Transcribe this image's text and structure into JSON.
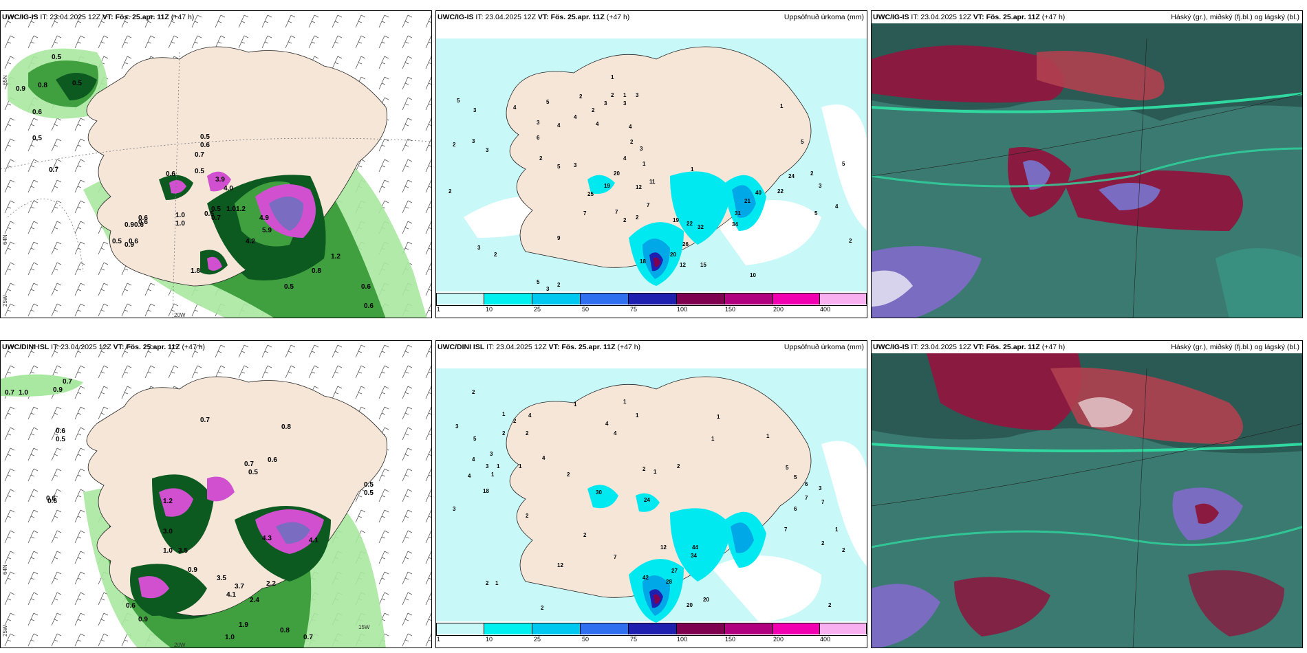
{
  "panels": {
    "top_left": {
      "model": "UWC/IG-IS",
      "it": "IT: 23.04.2025 12Z",
      "vt_label": "VT:",
      "vt": "Fös. 25.apr. 11Z",
      "lead": "(+47 h)",
      "right": ""
    },
    "top_mid": {
      "model": "UWC/IG-IS",
      "it": "IT: 23.04.2025 12Z",
      "vt_label": "VT:",
      "vt": "Fös. 25.apr. 11Z",
      "lead": "(+47 h)",
      "right": "Uppsöfnuð úrkoma (mm)"
    },
    "top_right": {
      "model": "UWC/IG-IS",
      "it": "IT: 23.04.2025 12Z",
      "vt_label": "VT:",
      "vt": "Fös. 25.apr. 11Z",
      "lead": "(+47 h)",
      "right": "Háský (gr.), miðský (fj.bl.) og lágský (bl.)"
    },
    "bottom_left": {
      "model": "UWC/DINI ISL",
      "it": "IT: 23.04.2025 12Z",
      "vt_label": "VT:",
      "vt": "Fös. 25.apr. 11Z",
      "lead": "(+47 h)",
      "right": ""
    },
    "bottom_mid": {
      "model": "UWC/DINI ISL",
      "it": "IT: 23.04.2025 12Z",
      "vt_label": "VT:",
      "vt": "Fös. 25.apr. 11Z",
      "lead": "(+47 h)",
      "right": "Uppsöfnuð úrkoma (mm)"
    },
    "bottom_right": {
      "model": "UWC/IG-IS",
      "it": "IT: 23.04.2025 12Z",
      "vt_label": "VT:",
      "vt": "Fös. 25.apr. 11Z",
      "lead": "(+47 h)",
      "right": "Háský (gr.), miðský (fj.bl.) og lágský (bl.)"
    }
  },
  "axis_labels": {
    "lat_65": "65N",
    "lat_64": "64N",
    "lon_25": "25W",
    "lon_20": "20W",
    "lon_15": "15W"
  },
  "colorbar": {
    "ticks": [
      "1",
      "10",
      "25",
      "50",
      "75",
      "100",
      "150",
      "200",
      "400"
    ],
    "colors": [
      "#c8f8f8",
      "#00f0f0",
      "#00c8f0",
      "#3070f0",
      "#2020b0",
      "#800050",
      "#b00080",
      "#f000b0",
      "#f8b0f0"
    ]
  },
  "colors": {
    "land": "#f5e6d8",
    "precip_light": "#c8f8f8",
    "precip_mid": "#00e8f0",
    "precip_dark": "#00a8e8",
    "green_light": "#a8e8a0",
    "green_mid": "#40a040",
    "green_dark": "#0c5a20",
    "magenta": "#d050d0",
    "cloud_teal": "#3a7a70",
    "cloud_dark": "#2b5a55",
    "cloud_maroon": "#8a1a40",
    "cloud_violet": "#7a6cc0",
    "cloud_seafoam": "#30d8a0"
  },
  "wind_values": {
    "top_left": [
      "0.5",
      "0.8",
      "0.9",
      "0.5",
      "0.6",
      "0.5",
      "0.7",
      "0.6",
      "0.5",
      "0.6",
      "0.7",
      "0.5",
      "0.6",
      "1.0",
      "0.5",
      "0.7",
      "1.0",
      "0.9",
      "0.6",
      "0.9",
      "0.5",
      "0.6",
      "0.5",
      "0.6",
      "4.2",
      "3.9",
      "4.0",
      "4.9",
      "5.9",
      "1.2",
      "0.6",
      "1.2",
      "0.5",
      "0.6",
      "1.0",
      "1.8",
      "0.8"
    ],
    "bottom_left": [
      "0.7",
      "1.0",
      "0.9",
      "0.7",
      "0.6",
      "0.5",
      "0.7",
      "0.8",
      "0.6",
      "0.7",
      "0.5",
      "0.6",
      "1.2",
      "3.0",
      "3.5",
      "1.0",
      "0.9",
      "3.5",
      "3.7",
      "4.1",
      "2.4",
      "2.2",
      "0.6",
      "0.9",
      "1.9",
      "1.0",
      "0.8",
      "0.7",
      "0.5",
      "0.5",
      "0.6",
      "4.3",
      "4.1"
    ]
  },
  "precip_values": {
    "top_mid": [
      "5",
      "3",
      "2",
      "2",
      "3",
      "3",
      "4",
      "5",
      "3",
      "4",
      "6",
      "2",
      "5",
      "4",
      "2",
      "2",
      "3",
      "4",
      "1",
      "2",
      "3",
      "3",
      "1",
      "3",
      "4",
      "2",
      "3",
      "7",
      "1",
      "4",
      "9",
      "2",
      "3",
      "2",
      "7",
      "2",
      "1",
      "5",
      "3",
      "2",
      "20",
      "19",
      "25",
      "12",
      "11",
      "7",
      "19",
      "22",
      "32",
      "26",
      "20",
      "12",
      "15",
      "18",
      "24",
      "22",
      "40",
      "31",
      "34",
      "10",
      "21",
      "1",
      "2",
      "3",
      "5",
      "5",
      "4",
      "5",
      "2"
    ],
    "bottom_mid": [
      "2",
      "3",
      "4",
      "1",
      "5",
      "1",
      "2",
      "2",
      "3",
      "2",
      "4",
      "3",
      "4",
      "4",
      "2",
      "18",
      "1",
      "3",
      "1",
      "1",
      "4",
      "4",
      "1",
      "1",
      "2",
      "1",
      "2",
      "1",
      "12",
      "2",
      "30",
      "24",
      "2",
      "2",
      "1",
      "2",
      "7",
      "12",
      "27",
      "44",
      "34",
      "28",
      "20",
      "42",
      "20",
      "5",
      "6",
      "7",
      "6",
      "7",
      "5",
      "1",
      "1",
      "1",
      "2",
      "7",
      "3",
      "2",
      "2",
      "3"
    ]
  }
}
